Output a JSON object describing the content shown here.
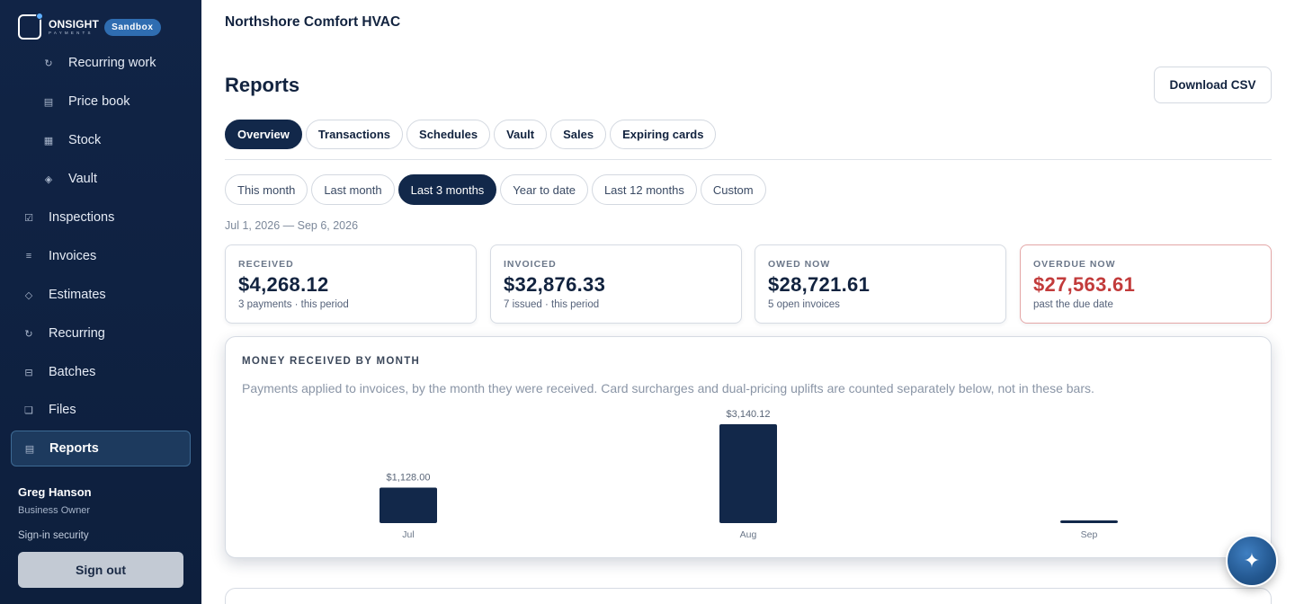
{
  "brand": {
    "name": "ONSIGHT",
    "sub": "PAYMENTS",
    "badge": "Sandbox"
  },
  "sidebar": {
    "items": [
      {
        "label": "Recurring work",
        "icon": "refresh-icon",
        "glyph": "↻"
      },
      {
        "label": "Price book",
        "icon": "book-icon",
        "glyph": "▤"
      },
      {
        "label": "Stock",
        "icon": "grid-icon",
        "glyph": "▦"
      },
      {
        "label": "Vault",
        "icon": "diamond-icon",
        "glyph": "◈"
      },
      {
        "label": "Inspections",
        "icon": "checkbox-icon",
        "glyph": "☑"
      },
      {
        "label": "Invoices",
        "icon": "list-icon",
        "glyph": "≡"
      },
      {
        "label": "Estimates",
        "icon": "diamond-outline-icon",
        "glyph": "◇"
      },
      {
        "label": "Recurring",
        "icon": "refresh-icon",
        "glyph": "↻"
      },
      {
        "label": "Batches",
        "icon": "batch-icon",
        "glyph": "⊟"
      },
      {
        "label": "Files",
        "icon": "file-icon",
        "glyph": "❏"
      },
      {
        "label": "Reports",
        "icon": "report-icon",
        "glyph": "▤"
      }
    ],
    "user": {
      "name": "Greg Hanson",
      "role": "Business Owner"
    },
    "security_link": "Sign-in security",
    "sign_out": "Sign out"
  },
  "header": {
    "org": "Northshore Comfort HVAC",
    "title": "Reports",
    "download_label": "Download CSV"
  },
  "tabs": [
    "Overview",
    "Transactions",
    "Schedules",
    "Vault",
    "Sales",
    "Expiring cards"
  ],
  "ranges": [
    "This month",
    "Last month",
    "Last 3 months",
    "Year to date",
    "Last 12 months",
    "Custom"
  ],
  "date_range": "Jul 1, 2026 — Sep 6, 2026",
  "stats": [
    {
      "label": "RECEIVED",
      "value": "$4,268.12",
      "note": "3 payments · this period"
    },
    {
      "label": "INVOICED",
      "value": "$32,876.33",
      "note": "7 issued · this period"
    },
    {
      "label": "OWED NOW",
      "value": "$28,721.61",
      "note": "5 open invoices"
    },
    {
      "label": "OVERDUE NOW",
      "value": "$27,563.61",
      "note": "past the due date"
    }
  ],
  "chart": {
    "title": "MONEY RECEIVED BY MONTH",
    "description": "Payments applied to invoices, by the month they were received. Card surcharges and dual-pricing uplifts are counted separately below, not in these bars."
  },
  "chart_data": {
    "type": "bar",
    "categories": [
      "Jul",
      "Aug",
      "Sep"
    ],
    "values": [
      1128.0,
      3140.12,
      0
    ],
    "data_labels": [
      "$1,128.00",
      "$3,140.12",
      ""
    ],
    "color": "#12284a"
  },
  "colors": {
    "accent": "#12284a",
    "overdue": "#c23b3b",
    "sidebar": "#112446"
  }
}
